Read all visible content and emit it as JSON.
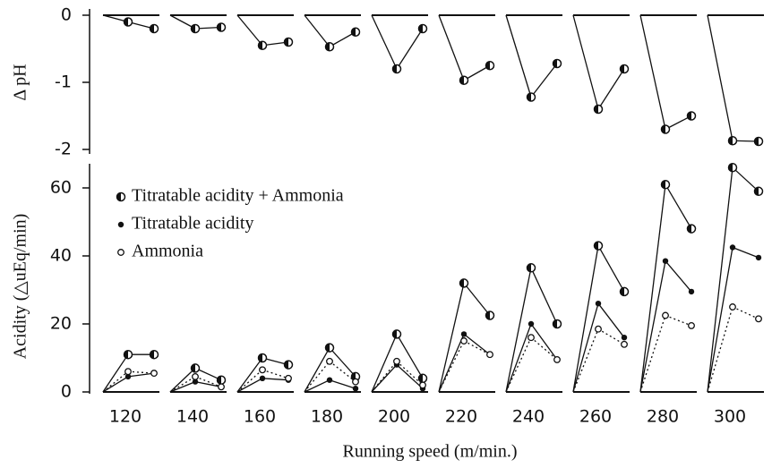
{
  "chart_data": [
    {
      "type": "line",
      "ylabel": "Δ pH",
      "categories": [
        120,
        140,
        160,
        180,
        200,
        220,
        240,
        260,
        280,
        300
      ],
      "ylim": [
        -2,
        0
      ],
      "yticks": [
        0,
        -1,
        -2
      ],
      "series": [
        {
          "name": "Δ pH",
          "color": "#111",
          "marker": "half",
          "values": [
            [
              -0.1,
              -0.2
            ],
            [
              -0.2,
              -0.18
            ],
            [
              -0.45,
              -0.4
            ],
            [
              -0.47,
              -0.25
            ],
            [
              -0.8,
              -0.2
            ],
            [
              -0.97,
              -0.75
            ],
            [
              -1.22,
              -0.72
            ],
            [
              -1.4,
              -0.8
            ],
            [
              -1.7,
              -1.5
            ],
            [
              -1.87,
              -1.88
            ]
          ]
        }
      ]
    },
    {
      "type": "line",
      "ylabel": "Acidity (△uEq/min)",
      "xlabel": "Running speed (m/min.)",
      "categories": [
        120,
        140,
        160,
        180,
        200,
        220,
        240,
        260,
        280,
        300
      ],
      "ylim": [
        0,
        68
      ],
      "yticks": [
        0,
        20,
        40,
        60
      ],
      "series": [
        {
          "name": "Titratable acidity + Ammonia",
          "color": "#111",
          "marker": "half",
          "dash": false,
          "values": [
            [
              11,
              11
            ],
            [
              7,
              3.5
            ],
            [
              10,
              8
            ],
            [
              13,
              4.5
            ],
            [
              17,
              4
            ],
            [
              32,
              22.5
            ],
            [
              36.5,
              20
            ],
            [
              43,
              29.5
            ],
            [
              61,
              48
            ],
            [
              66,
              59
            ]
          ]
        },
        {
          "name": "Titratable acidity",
          "color": "#111",
          "marker": "filled",
          "dash": false,
          "values": [
            [
              4.5,
              5.5
            ],
            [
              3,
              1.5
            ],
            [
              4,
              3.5
            ],
            [
              3.5,
              1
            ],
            [
              8,
              1
            ],
            [
              17,
              11
            ],
            [
              20,
              9.5
            ],
            [
              26,
              16
            ],
            [
              38.5,
              29.5
            ],
            [
              42.5,
              39.5
            ]
          ]
        },
        {
          "name": "Ammonia",
          "color": "#111",
          "marker": "open",
          "dash": true,
          "values": [
            [
              6,
              5.5
            ],
            [
              4.5,
              1.5
            ],
            [
              6.5,
              4
            ],
            [
              9,
              3
            ],
            [
              9,
              2
            ],
            [
              15,
              11
            ],
            [
              16,
              9.5
            ],
            [
              18.5,
              14
            ],
            [
              22.5,
              19.5
            ],
            [
              25,
              21.5
            ]
          ]
        }
      ]
    }
  ]
}
